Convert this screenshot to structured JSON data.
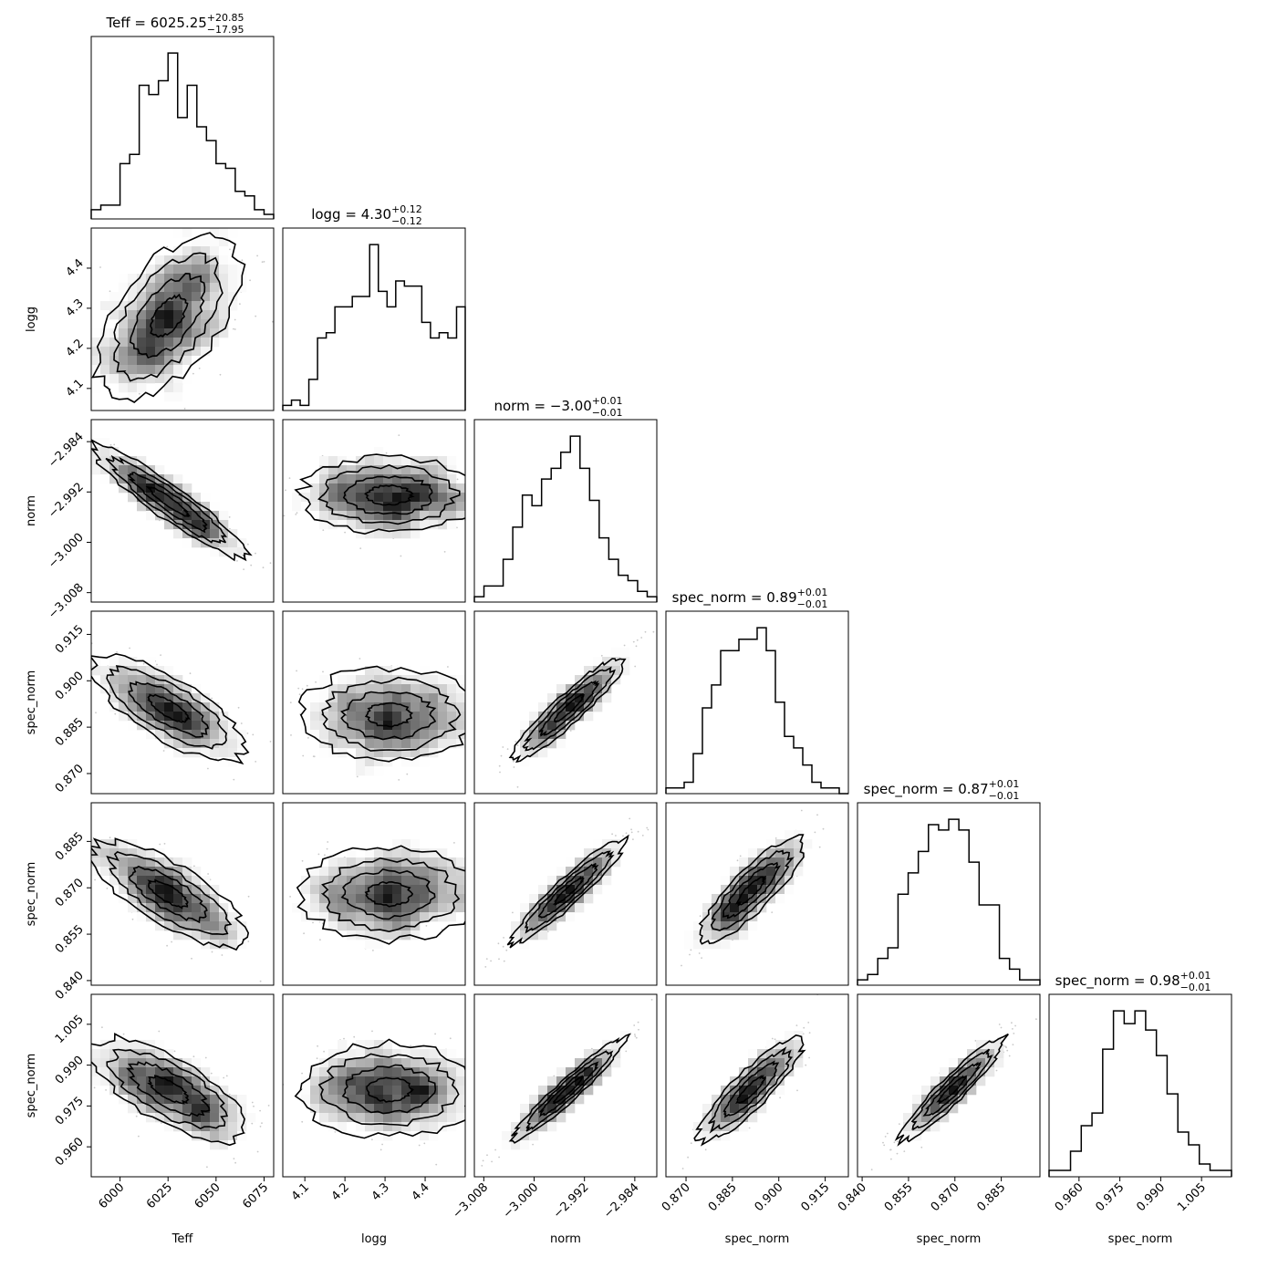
{
  "chart_data": {
    "type": "corner",
    "parameters": [
      {
        "label": "Teff",
        "title_prefix": "Teff = ",
        "title_value": "6025.25",
        "title_plus": "+20.85",
        "title_minus": "−17.95",
        "range": [
          5985,
          6080
        ],
        "ticks": [
          6000,
          6025,
          6050,
          6075
        ],
        "tick_labels": [
          "6000",
          "6025",
          "6050",
          "6075"
        ],
        "hist": [
          2,
          3,
          3,
          12,
          14,
          29,
          27,
          30,
          36,
          22,
          29,
          20,
          17,
          12,
          11,
          6,
          5,
          2,
          1
        ]
      },
      {
        "label": "logg",
        "title_prefix": "logg = ",
        "title_value": "4.30",
        "title_plus": "+0.12",
        "title_minus": "−0.12",
        "range": [
          4.045,
          4.5
        ],
        "ticks": [
          4.1,
          4.2,
          4.3,
          4.4
        ],
        "tick_labels": [
          "4.1",
          "4.2",
          "4.3",
          "4.4"
        ],
        "hist": [
          1,
          2,
          1,
          6,
          14,
          15,
          20,
          20,
          22,
          22,
          32,
          23,
          20,
          25,
          24,
          24,
          17,
          14,
          15,
          14,
          20
        ]
      },
      {
        "label": "norm",
        "title_prefix": "norm = ",
        "title_value": "−3.00",
        "title_plus": "+0.01",
        "title_minus": "−0.01",
        "range": [
          -3.0095,
          -2.9805
        ],
        "ticks": [
          -3.008,
          -3.0,
          -2.992,
          -2.984
        ],
        "tick_labels": [
          "−3.008",
          "−3.000",
          "−2.992",
          "−2.984"
        ],
        "hist": [
          1,
          3,
          3,
          8,
          14,
          20,
          18,
          23,
          25,
          28,
          31,
          25,
          19,
          12,
          8,
          5,
          4,
          2,
          1
        ]
      },
      {
        "label": "spec_norm",
        "title_prefix": "spec_norm = ",
        "title_value": "0.89",
        "title_plus": "+0.01",
        "title_minus": "−0.01",
        "range": [
          0.8635,
          0.9225
        ],
        "ticks": [
          0.87,
          0.885,
          0.9,
          0.915
        ],
        "tick_labels": [
          "0.870",
          "0.885",
          "0.900",
          "0.915"
        ],
        "hist": [
          1,
          1,
          2,
          7,
          15,
          19,
          25,
          25,
          27,
          27,
          29,
          25,
          16,
          10,
          8,
          5,
          2,
          1,
          1,
          0
        ]
      },
      {
        "label": "spec_norm",
        "title_prefix": "spec_norm = ",
        "title_value": "0.87",
        "title_plus": "+0.01",
        "title_minus": "−0.01",
        "range": [
          0.8385,
          0.8975
        ],
        "ticks": [
          0.84,
          0.855,
          0.87,
          0.885
        ],
        "tick_labels": [
          "0.840",
          "0.855",
          "0.870",
          "0.885"
        ],
        "hist": [
          1,
          2,
          5,
          7,
          17,
          21,
          25,
          30,
          29,
          31,
          29,
          23,
          15,
          15,
          5,
          3,
          1,
          1
        ]
      },
      {
        "label": "spec_norm",
        "title_prefix": "spec_norm = ",
        "title_value": "0.98",
        "title_plus": "+0.01",
        "title_minus": "−0.01",
        "range": [
          0.949,
          1.016
        ],
        "ticks": [
          0.96,
          0.975,
          0.99,
          1.005
        ],
        "tick_labels": [
          "0.960",
          "0.975",
          "0.990",
          "1.005"
        ],
        "hist": [
          1,
          1,
          4,
          8,
          10,
          20,
          26,
          24,
          26,
          23,
          19,
          13,
          7,
          5,
          2,
          1,
          1
        ]
      }
    ],
    "pairs": [
      {
        "x": 0,
        "y": 1,
        "mean": [
          6025.25,
          4.28
        ],
        "sd": [
          18.5,
          0.1
        ],
        "rho": 0.55
      },
      {
        "x": 0,
        "y": 2,
        "mean": [
          6025.25,
          -2.9935
        ],
        "sd": [
          20,
          0.0045
        ],
        "rho": -0.93
      },
      {
        "x": 1,
        "y": 2,
        "mean": [
          4.31,
          -2.9925
        ],
        "sd": [
          0.11,
          0.003
        ],
        "rho": 0.0
      },
      {
        "x": 0,
        "y": 3,
        "mean": [
          6025.25,
          0.891
        ],
        "sd": [
          20,
          0.0085
        ],
        "rho": -0.75
      },
      {
        "x": 1,
        "y": 3,
        "mean": [
          4.31,
          0.889
        ],
        "sd": [
          0.11,
          0.0075
        ],
        "rho": 0.0
      },
      {
        "x": 2,
        "y": 3,
        "mean": [
          -2.9945,
          0.891
        ],
        "sd": [
          0.0045,
          0.0085
        ],
        "rho": 0.93
      },
      {
        "x": 0,
        "y": 4,
        "mean": [
          6025.25,
          0.868
        ],
        "sd": [
          20,
          0.0085
        ],
        "rho": -0.75
      },
      {
        "x": 1,
        "y": 4,
        "mean": [
          4.31,
          0.868
        ],
        "sd": [
          0.11,
          0.0075
        ],
        "rho": 0.0
      },
      {
        "x": 2,
        "y": 4,
        "mean": [
          -2.9945,
          0.869
        ],
        "sd": [
          0.0045,
          0.0085
        ],
        "rho": 0.94
      },
      {
        "x": 3,
        "y": 4,
        "mean": [
          0.891,
          0.869
        ],
        "sd": [
          0.0085,
          0.0085
        ],
        "rho": 0.85
      },
      {
        "x": 0,
        "y": 5,
        "mean": [
          6025.25,
          0.981
        ],
        "sd": [
          20,
          0.0095
        ],
        "rho": -0.7
      },
      {
        "x": 1,
        "y": 5,
        "mean": [
          4.31,
          0.981
        ],
        "sd": [
          0.11,
          0.0085
        ],
        "rho": 0.0
      },
      {
        "x": 2,
        "y": 5,
        "mean": [
          -2.9945,
          0.981
        ],
        "sd": [
          0.0045,
          0.0095
        ],
        "rho": 0.96
      },
      {
        "x": 3,
        "y": 5,
        "mean": [
          0.891,
          0.981
        ],
        "sd": [
          0.0085,
          0.0095
        ],
        "rho": 0.88
      },
      {
        "x": 4,
        "y": 5,
        "mean": [
          0.869,
          0.981
        ],
        "sd": [
          0.0085,
          0.0095
        ],
        "rho": 0.94
      }
    ]
  }
}
